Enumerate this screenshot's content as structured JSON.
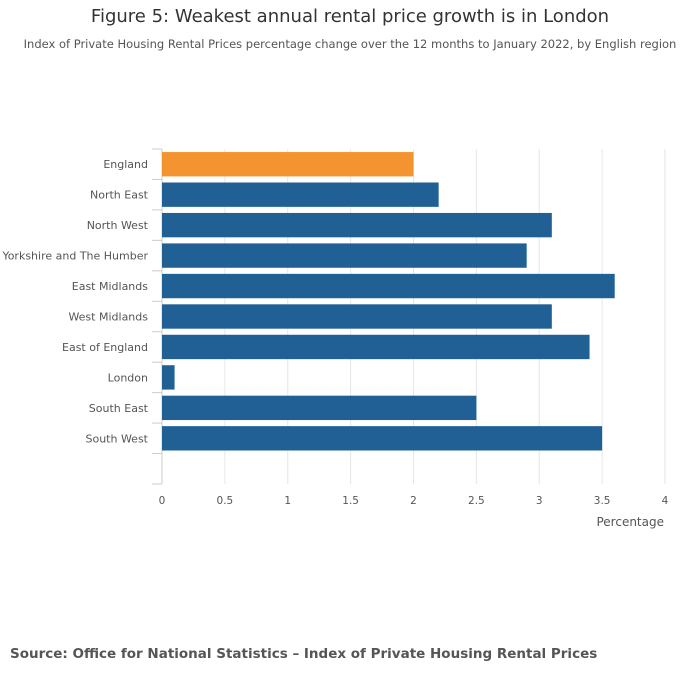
{
  "chart_data": {
    "type": "bar",
    "orientation": "horizontal",
    "title": "Figure 5: Weakest annual rental price growth is in London",
    "subtitle": "Index of Private Housing Rental Prices percentage change over the 12 months to January 2022, by English region",
    "categories": [
      "England",
      "North East",
      "North West",
      "Yorkshire and The Humber",
      "East Midlands",
      "West Midlands",
      "East of England",
      "London",
      "South East",
      "South West"
    ],
    "values": [
      2.0,
      2.2,
      3.1,
      2.9,
      3.6,
      3.1,
      3.4,
      0.1,
      2.5,
      3.5
    ],
    "bar_colors": [
      "#f39431",
      "#206095",
      "#206095",
      "#206095",
      "#206095",
      "#206095",
      "#206095",
      "#206095",
      "#206095",
      "#206095"
    ],
    "xlabel": "Percentage",
    "ylabel": "",
    "xlim": [
      0,
      4
    ],
    "x_ticks": [
      "0",
      "0.5",
      "1",
      "1.5",
      "2",
      "2.5",
      "3",
      "3.5",
      "4"
    ],
    "grid": true
  },
  "footer": {
    "source": "Source: Office for National Statistics – Index of Private Housing Rental Prices"
  }
}
